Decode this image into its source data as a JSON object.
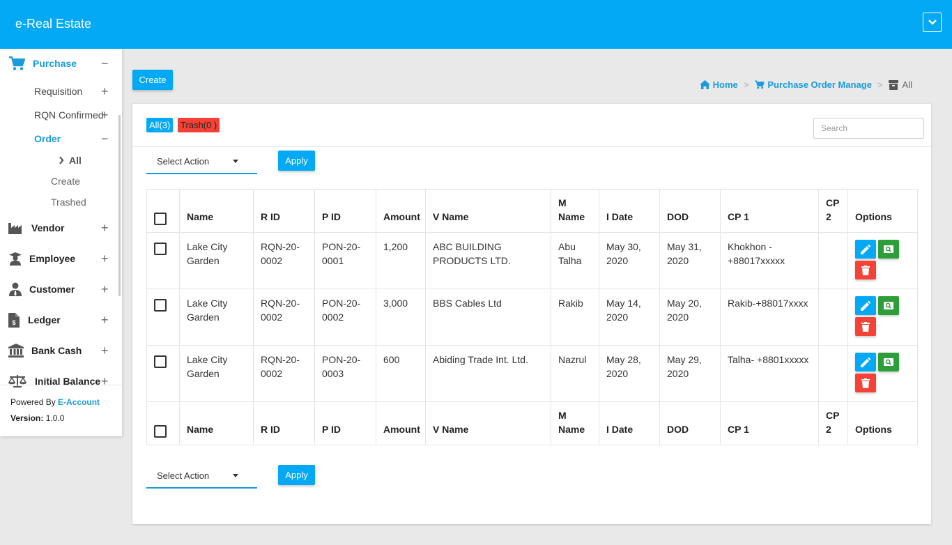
{
  "app": {
    "title": "e-Real Estate"
  },
  "sidebar": {
    "purchase": {
      "label": "Purchase",
      "sign": "−"
    },
    "requisition": {
      "label": "Requisition",
      "sign": "+"
    },
    "rqn_confirmed": {
      "label": "RQN Confirmed",
      "sign": "+"
    },
    "order": {
      "label": "Order",
      "sign": "−"
    },
    "order_all": {
      "label": "All"
    },
    "order_create": {
      "label": "Create"
    },
    "order_trashed": {
      "label": "Trashed"
    },
    "vendor": {
      "label": "Vendor",
      "sign": "+"
    },
    "employee": {
      "label": "Employee",
      "sign": "+"
    },
    "customer": {
      "label": "Customer",
      "sign": "+"
    },
    "ledger": {
      "label": "Ledger",
      "sign": "+"
    },
    "bank_cash": {
      "label": "Bank Cash",
      "sign": "+"
    },
    "initial_balance": {
      "label": "Initial Balance",
      "sign": "+"
    },
    "powered_by": "Powered By",
    "brand": "E-Account",
    "version_label": "Version:",
    "version_value": "1.0.0"
  },
  "toolbar": {
    "create_label": "Create"
  },
  "breadcrumb": {
    "home": "Home",
    "section": "Purchase Order Manage",
    "current": "All"
  },
  "filters": {
    "all_label": "All(3)",
    "trash_label": "Trash(0 )",
    "search_placeholder": "Search",
    "select_action": "Select Action",
    "apply_label": "Apply"
  },
  "table": {
    "headers": {
      "name": "Name",
      "rid": "R ID",
      "pid": "P ID",
      "amount": "Amount",
      "vname": "V Name",
      "mname_1": "M",
      "mname_2": "Name",
      "idate": "I Date",
      "dod": "DOD",
      "cp1": "CP 1",
      "cp2_1": "CP",
      "cp2_2": "2",
      "options": "Options"
    },
    "rows": [
      {
        "name": "Lake City Garden",
        "rid": "RQN-20-0002",
        "pid": "PON-20-0001",
        "amount": "1,200",
        "vname": "ABC BUILDING PRODUCTS LTD.",
        "mname": "Abu Talha",
        "idate": "May 30, 2020",
        "dod": "May 31, 2020",
        "cp1": "Khokhon -+88017xxxxx",
        "cp2": ""
      },
      {
        "name": "Lake City Garden",
        "rid": "RQN-20-0002",
        "pid": "PON-20-0002",
        "amount": "3,000",
        "vname": "BBS Cables Ltd",
        "mname": "Rakib",
        "idate": "May 14, 2020",
        "dod": "May 20, 2020",
        "cp1": "Rakib-+88017xxxx",
        "cp2": ""
      },
      {
        "name": "Lake City Garden",
        "rid": "RQN-20-0002",
        "pid": "PON-20-0003",
        "amount": "600",
        "vname": "Abiding Trade Int. Ltd.",
        "mname": "Nazrul",
        "idate": "May 28, 2020",
        "dod": "May 29, 2020",
        "cp1": "Talha- +8801xxxxx",
        "cp2": ""
      }
    ]
  },
  "colors": {
    "primary": "#03a9f4",
    "link": "#1a9bdc",
    "danger": "#f44336",
    "success": "#2e9e3a"
  }
}
